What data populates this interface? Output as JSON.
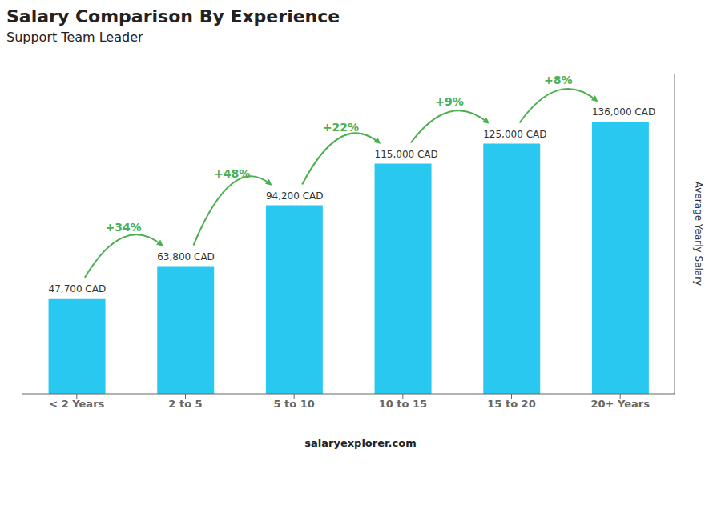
{
  "chart_data": {
    "type": "bar",
    "title": "Salary Comparison By Experience",
    "subtitle": "Support Team Leader",
    "categories": [
      "< 2 Years",
      "2 to 5",
      "5 to 10",
      "10 to 15",
      "15 to 20",
      "20+ Years"
    ],
    "values": [
      47700,
      63800,
      94200,
      115000,
      125000,
      136000
    ],
    "value_labels": [
      "47,700 CAD",
      "63,800 CAD",
      "94,200 CAD",
      "115,000 CAD",
      "125,000 CAD",
      "136,000 CAD"
    ],
    "data_labels": true,
    "color": "#29c8f0",
    "ylim": [
      0,
      160000
    ],
    "y_label": "Average Yearly Salary",
    "tick_labels": "x",
    "grid": false,
    "annotations": [
      {
        "text": "+34%",
        "color": "#4caf50"
      },
      {
        "text": "+48%",
        "color": "#4caf50"
      },
      {
        "text": "+22%",
        "color": "#4caf50"
      },
      {
        "text": "+9%",
        "color": "#4caf50"
      },
      {
        "text": "+8%",
        "color": "#4caf50"
      }
    ],
    "watermark": "salaryexplorer.com"
  }
}
